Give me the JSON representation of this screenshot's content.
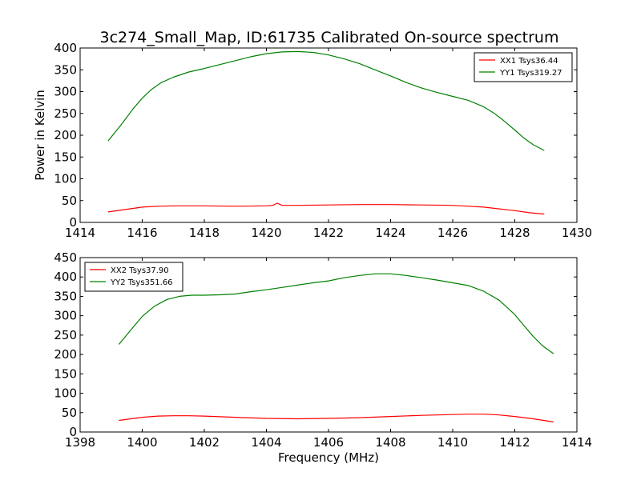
{
  "title": "3c274_Small_Map, ID:61735 Calibrated On-source spectrum",
  "xlabel": "Frequency (MHz)",
  "ylabel": "Power in Kelvin",
  "colors": {
    "red": "#ff0000",
    "green": "#008000"
  },
  "chart_data": [
    {
      "type": "line",
      "title": "3c274_Small_Map, ID:61735 Calibrated On-source spectrum",
      "xlabel": "",
      "ylabel": "Power in Kelvin",
      "xlim": [
        1414,
        1430
      ],
      "ylim": [
        0,
        400
      ],
      "xticks": [
        1414,
        1416,
        1418,
        1420,
        1422,
        1424,
        1426,
        1428,
        1430
      ],
      "yticks": [
        0,
        50,
        100,
        150,
        200,
        250,
        300,
        350,
        400
      ],
      "grid": false,
      "legend_position": "top-right",
      "series": [
        {
          "name": "XX1 Tsys36.44",
          "color": "#ff0000",
          "x": [
            1414.9,
            1415.5,
            1416,
            1416.5,
            1417,
            1418,
            1419,
            1420,
            1420.2,
            1420.35,
            1420.5,
            1421,
            1422,
            1423,
            1424,
            1425,
            1426,
            1426.5,
            1427,
            1427.5,
            1428,
            1428.5,
            1428.95
          ],
          "y": [
            24,
            30,
            35,
            37,
            38,
            38,
            37,
            38,
            39,
            44,
            39,
            39,
            40,
            41,
            41,
            40,
            39,
            37,
            35,
            31,
            27,
            22,
            19
          ]
        },
        {
          "name": "YY1 Tsys319.27",
          "color": "#008000",
          "x": [
            1414.9,
            1415.3,
            1415.7,
            1416,
            1416.3,
            1416.6,
            1417,
            1417.5,
            1418,
            1418.5,
            1419,
            1419.5,
            1420,
            1420.5,
            1421,
            1421.5,
            1422,
            1422.5,
            1423,
            1423.5,
            1424,
            1424.5,
            1425,
            1425.5,
            1426,
            1426.5,
            1427,
            1427.3,
            1427.6,
            1428,
            1428.3,
            1428.6,
            1428.95
          ],
          "y": [
            187,
            222,
            260,
            285,
            305,
            320,
            333,
            345,
            353,
            362,
            371,
            380,
            387,
            391,
            392,
            390,
            384,
            375,
            364,
            350,
            336,
            321,
            308,
            298,
            289,
            280,
            265,
            252,
            236,
            212,
            193,
            178,
            165
          ]
        }
      ]
    },
    {
      "type": "line",
      "title": "",
      "xlabel": "Frequency (MHz)",
      "ylabel": "",
      "xlim": [
        1398,
        1414
      ],
      "ylim": [
        0,
        450
      ],
      "xticks": [
        1398,
        1400,
        1402,
        1404,
        1406,
        1408,
        1410,
        1412,
        1414
      ],
      "yticks": [
        0,
        50,
        100,
        150,
        200,
        250,
        300,
        350,
        400,
        450
      ],
      "grid": false,
      "legend_position": "top-left",
      "series": [
        {
          "name": "XX2 Tsys37.90",
          "color": "#ff0000",
          "x": [
            1399.25,
            1400,
            1400.5,
            1401,
            1401.5,
            1402,
            1403,
            1404,
            1405,
            1406,
            1407,
            1408,
            1409,
            1410,
            1410.5,
            1411,
            1411.5,
            1412,
            1412.5,
            1413.25
          ],
          "y": [
            30,
            38,
            41,
            42,
            42,
            41,
            38,
            35,
            34,
            35,
            37,
            40,
            43,
            45,
            46,
            46,
            44,
            40,
            35,
            26
          ]
        },
        {
          "name": "YY2 Tsys351.66",
          "color": "#008000",
          "x": [
            1399.25,
            1399.6,
            1400,
            1400.4,
            1400.8,
            1401.2,
            1401.6,
            1402,
            1402.5,
            1403,
            1403.5,
            1404,
            1404.5,
            1405,
            1405.5,
            1406,
            1406.5,
            1407,
            1407.5,
            1408,
            1408.5,
            1409,
            1409.5,
            1410,
            1410.5,
            1411,
            1411.5,
            1412,
            1412.3,
            1412.6,
            1412.9,
            1413.25
          ],
          "y": [
            226,
            260,
            298,
            325,
            342,
            350,
            353,
            353,
            354,
            356,
            362,
            367,
            373,
            379,
            385,
            390,
            398,
            404,
            408,
            408,
            404,
            398,
            392,
            385,
            378,
            363,
            340,
            303,
            274,
            246,
            222,
            202
          ]
        }
      ]
    }
  ]
}
